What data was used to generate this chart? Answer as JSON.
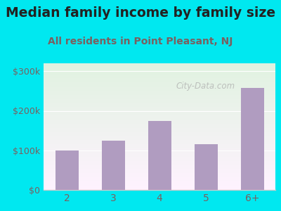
{
  "title": "Median family income by family size",
  "subtitle": "All residents in Point Pleasant, NJ",
  "categories": [
    "2",
    "3",
    "4",
    "5",
    "6+"
  ],
  "values": [
    100000,
    125000,
    175000,
    115000,
    258000
  ],
  "bar_color": "#b09cc0",
  "background_color": "#00e8f0",
  "title_color": "#222222",
  "subtitle_color": "#7a6060",
  "tick_color": "#7a6060",
  "axis_line_color": "#cccccc",
  "grid_color": "#e0e0e0",
  "ytick_labels": [
    "$0",
    "$100k",
    "$200k",
    "$300k"
  ],
  "ytick_values": [
    0,
    100000,
    200000,
    300000
  ],
  "ylim": [
    0,
    320000
  ],
  "watermark": "City-Data.com",
  "title_fontsize": 13.5,
  "subtitle_fontsize": 10
}
